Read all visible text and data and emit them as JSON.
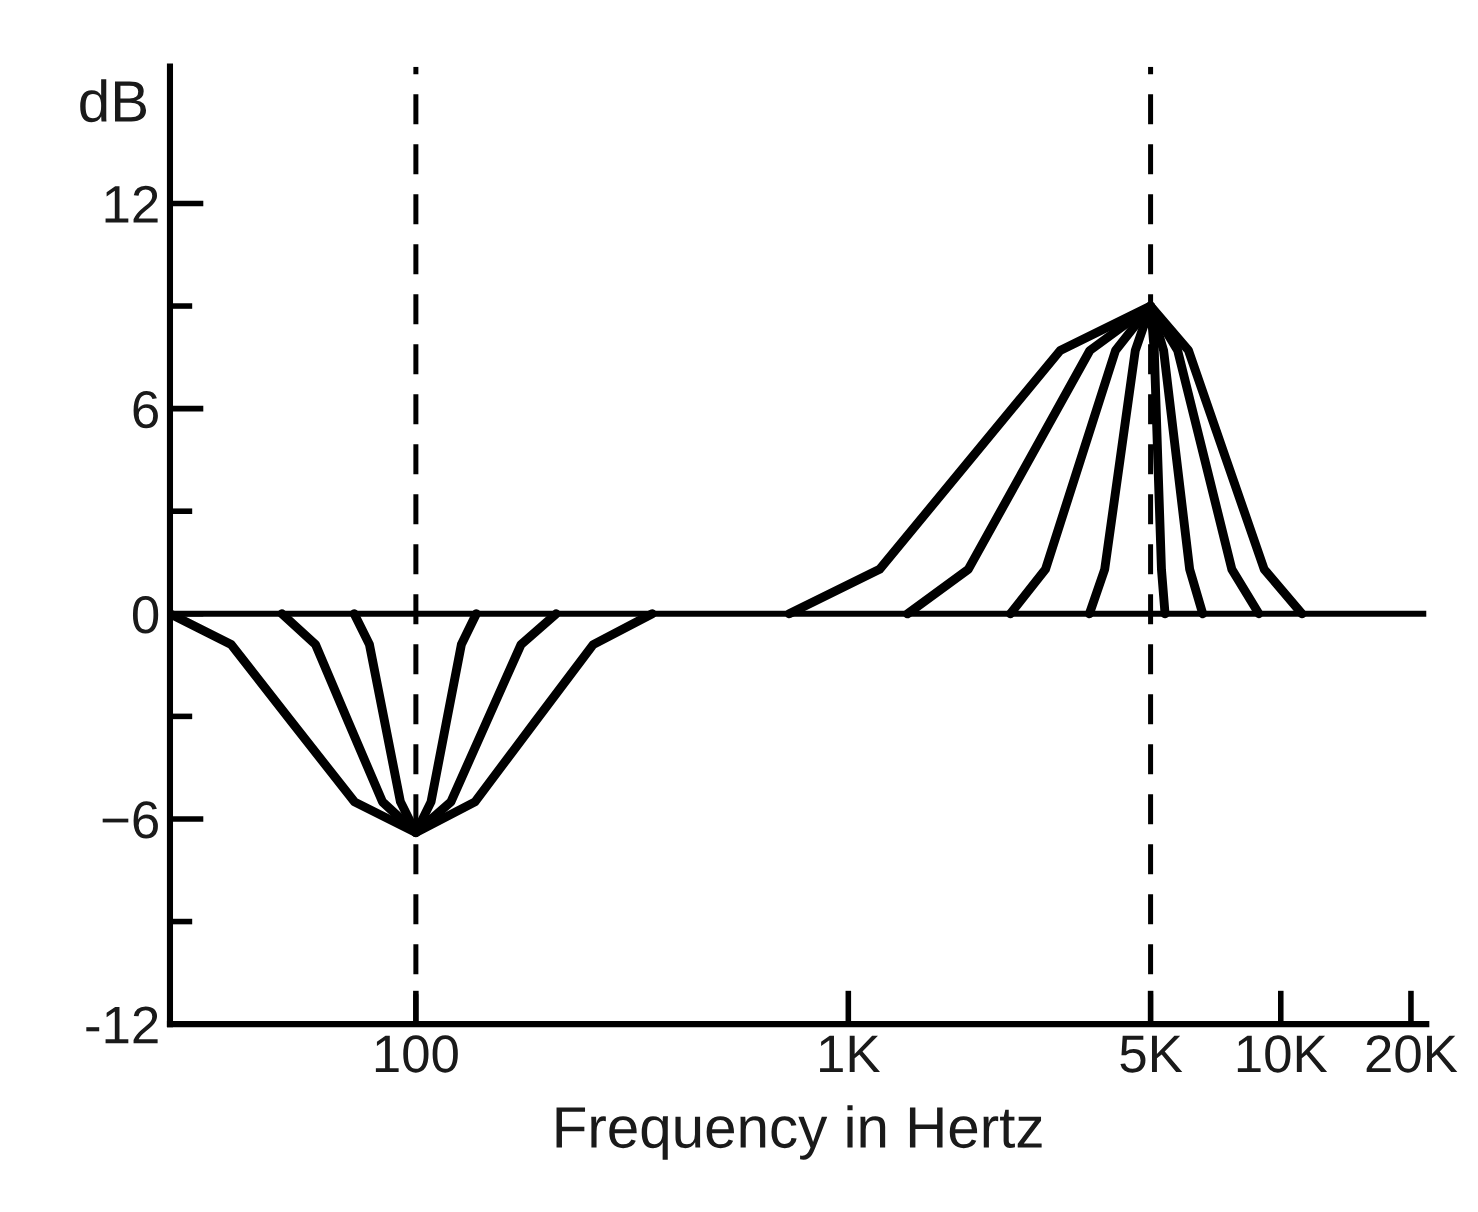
{
  "chart_data": {
    "type": "line",
    "xlabel": "Frequency in Hertz",
    "ylabel": "dB",
    "log": "x",
    "xlim": [
      27,
      21700
    ],
    "xticks": [
      100,
      {
        "value": 1000,
        "label": "1K"
      },
      {
        "value": 5000,
        "label": "5K"
      },
      {
        "value": 10000,
        "label": "10K"
      },
      {
        "value": 20000,
        "label": "20K"
      }
    ],
    "ylim": [
      -12,
      16
    ],
    "yticks": [
      -12,
      {
        "value": -9,
        "label": null
      },
      {
        "value": -6,
        "label": "−6"
      },
      {
        "value": -3,
        "label": null
      },
      0,
      {
        "value": 3,
        "label": null
      },
      6,
      {
        "value": 9,
        "label": null
      },
      12
    ],
    "grid": false,
    "legend": false,
    "marker": "none",
    "line_style": "solid",
    "series": [
      {
        "color": "#000000",
        "x": [
          27,
          37.4,
          51.9,
          72.1,
          100,
          137,
          187.5,
          257,
          352
        ],
        "values": [
          0,
          -0.9,
          -3.2,
          -5.5,
          -6.4,
          -5.5,
          -3.2,
          -0.9,
          0
        ]
      },
      {
        "color": "#000000",
        "x": [
          49,
          58.6,
          70.0,
          83.7,
          100,
          120.5,
          145.2,
          175.0,
          211
        ],
        "values": [
          0,
          -0.9,
          -3.2,
          -5.5,
          -6.4,
          -5.5,
          -3.2,
          -0.9,
          0
        ]
      },
      {
        "color": "#000000",
        "x": [
          72,
          78.1,
          84.8,
          92.1,
          100,
          108.4,
          117.5,
          127.4,
          138
        ],
        "values": [
          0,
          -0.9,
          -3.2,
          -5.5,
          -6.4,
          -5.5,
          -3.2,
          -0.9,
          0
        ]
      },
      {
        "color": "#000000",
        "x": [
          730,
          1181,
          1910,
          3090,
          5000,
          6118,
          7483,
          9157,
          11200
        ],
        "values": [
          0,
          1.3,
          4.5,
          7.7,
          9.0,
          7.7,
          4.5,
          1.3,
          0
        ]
      },
      {
        "color": "#000000",
        "x": [
          1370,
          1894,
          2618,
          3618,
          5000,
          5775,
          6672,
          7707,
          8900
        ],
        "values": [
          0,
          1.3,
          4.5,
          7.7,
          9.0,
          7.7,
          4.5,
          1.3,
          0
        ]
      },
      {
        "color": "#000000",
        "x": [
          2370,
          2857,
          3443,
          4148,
          5000,
          5359,
          5745,
          6156,
          6600
        ],
        "values": [
          0,
          1.3,
          4.5,
          7.7,
          9.0,
          7.7,
          4.5,
          1.3,
          0
        ]
      },
      {
        "color": "#000000",
        "x": [
          3610,
          3916,
          4249,
          4609,
          5000,
          5099,
          5196,
          5298,
          5400
        ],
        "values": [
          0,
          1.3,
          4.5,
          7.7,
          9.0,
          7.7,
          4.5,
          1.3,
          0
        ]
      }
    ],
    "ref_lines": [
      {
        "axis": "y",
        "value": 0,
        "color": "#000000",
        "line_style": "solid"
      },
      {
        "axis": "x",
        "value": 100,
        "color": "#000000",
        "line_style": "dashed"
      },
      {
        "axis": "x",
        "value": 5000,
        "color": "#000000",
        "line_style": "dashed"
      }
    ]
  }
}
